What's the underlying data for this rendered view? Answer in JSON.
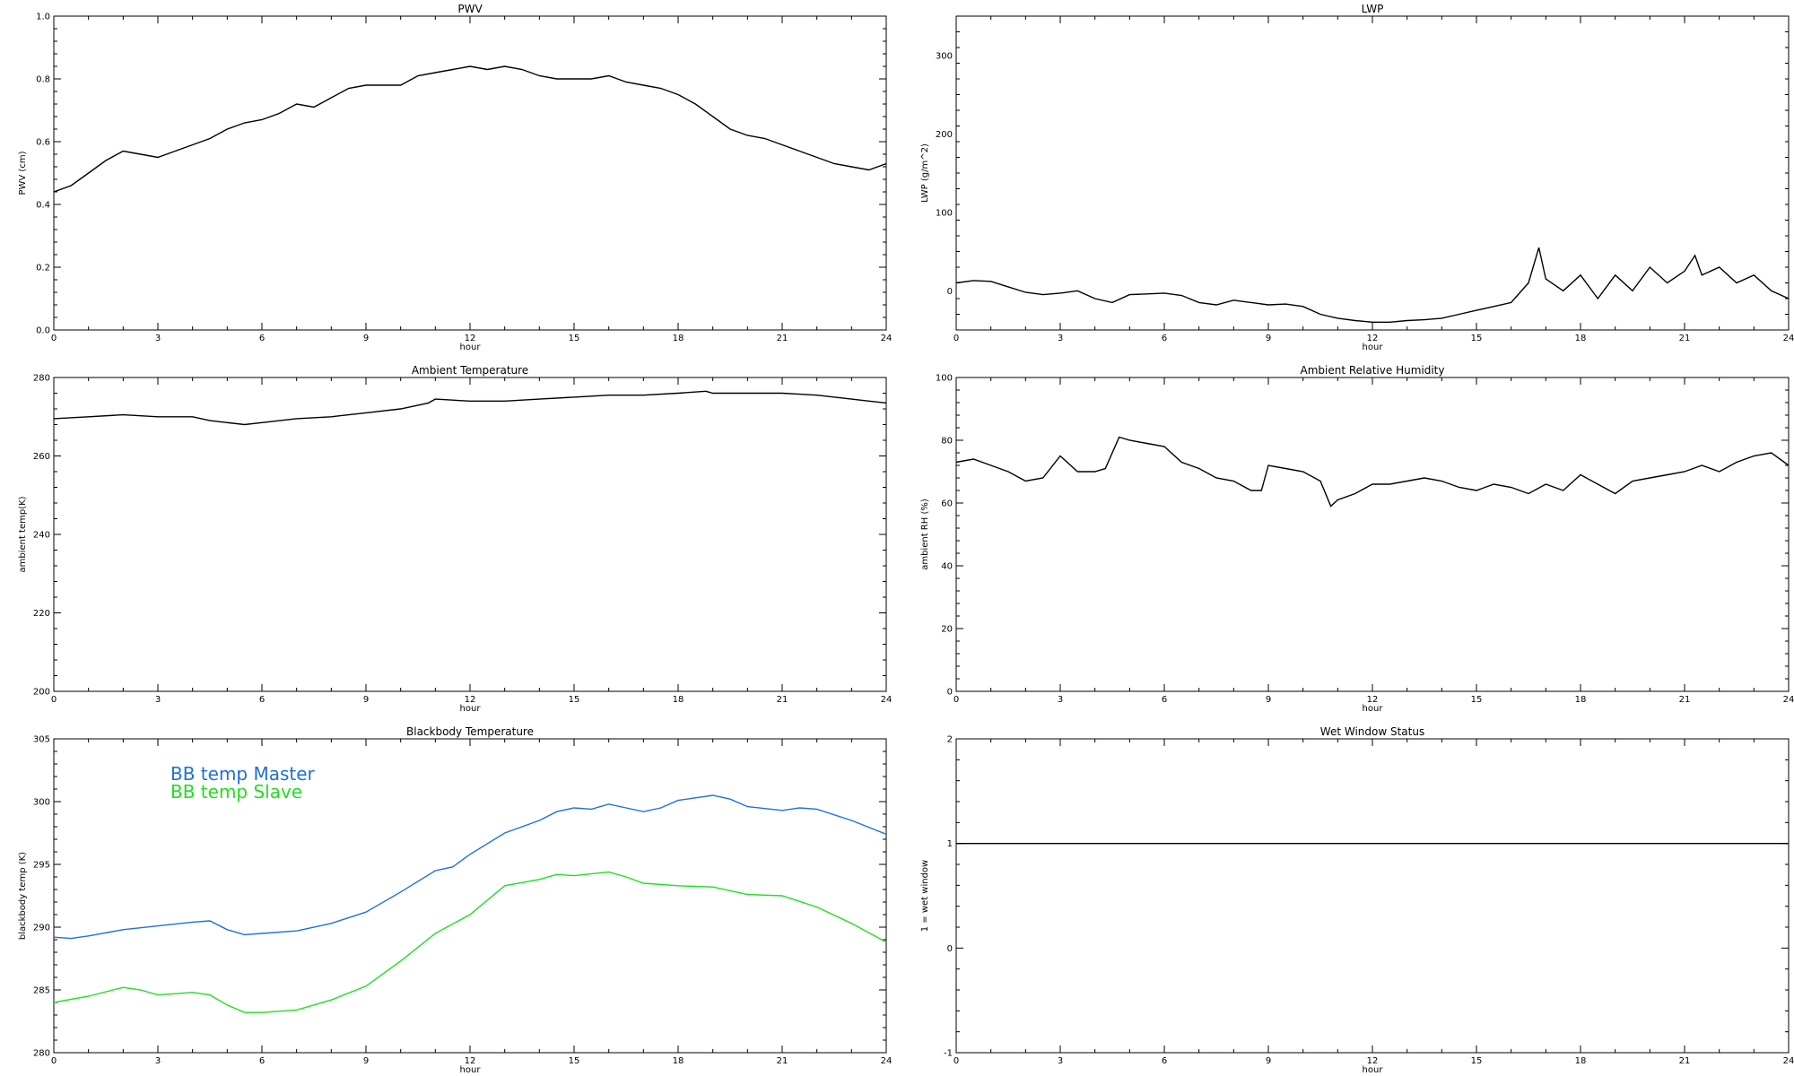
{
  "chart_data": [
    {
      "type": "line",
      "title": "PWV",
      "xlabel": "hour",
      "ylabel": "PWV (cm)",
      "xlim": [
        0,
        24
      ],
      "ylim": [
        0.0,
        1.0
      ],
      "xticks": [
        0,
        3,
        6,
        9,
        12,
        15,
        18,
        21,
        24
      ],
      "yticks": [
        0.0,
        0.2,
        0.4,
        0.6,
        0.8,
        1.0
      ],
      "ytick_labels": [
        "0.0",
        "0.2",
        "0.4",
        "0.6",
        "0.8",
        "1.0"
      ],
      "series": [
        {
          "color": "#000000",
          "x": [
            0,
            0.5,
            1,
            1.5,
            2,
            2.5,
            3,
            3.5,
            4,
            4.5,
            5,
            5.5,
            6,
            6.5,
            7,
            7.5,
            8,
            8.5,
            9,
            9.5,
            10,
            10.5,
            11,
            11.5,
            12,
            12.5,
            13,
            13.5,
            14,
            14.5,
            15,
            15.5,
            16,
            16.5,
            17,
            17.5,
            18,
            18.5,
            19,
            19.5,
            20,
            20.5,
            21,
            21.5,
            22,
            22.5,
            23,
            23.5,
            24
          ],
          "y": [
            0.44,
            0.46,
            0.5,
            0.54,
            0.57,
            0.56,
            0.55,
            0.57,
            0.59,
            0.61,
            0.64,
            0.66,
            0.67,
            0.69,
            0.72,
            0.71,
            0.74,
            0.77,
            0.78,
            0.78,
            0.78,
            0.81,
            0.82,
            0.83,
            0.84,
            0.83,
            0.84,
            0.83,
            0.81,
            0.8,
            0.8,
            0.8,
            0.81,
            0.79,
            0.78,
            0.77,
            0.75,
            0.72,
            0.68,
            0.64,
            0.62,
            0.61,
            0.59,
            0.57,
            0.55,
            0.53,
            0.52,
            0.51,
            0.53
          ]
        }
      ]
    },
    {
      "type": "line",
      "title": "LWP",
      "xlabel": "hour",
      "ylabel": "LWP (g/m^2)",
      "xlim": [
        0,
        24
      ],
      "ylim": [
        -50,
        350
      ],
      "xticks": [
        0,
        3,
        6,
        9,
        12,
        15,
        18,
        21,
        24
      ],
      "yticks": [
        0,
        100,
        200,
        300
      ],
      "ytick_labels": [
        "0",
        "100",
        "200",
        "300"
      ],
      "series": [
        {
          "color": "#000000",
          "x": [
            0,
            0.5,
            1,
            1.5,
            2,
            2.5,
            3,
            3.5,
            4,
            4.5,
            5,
            5.5,
            6,
            6.5,
            7,
            7.5,
            8,
            8.5,
            9,
            9.5,
            10,
            10.5,
            11,
            11.5,
            12,
            12.5,
            13,
            13.5,
            14,
            14.5,
            15,
            15.5,
            16,
            16.5,
            16.8,
            17,
            17.5,
            18,
            18.5,
            19,
            19.5,
            20,
            20.5,
            21,
            21.3,
            21.5,
            22,
            22.5,
            23,
            23.5,
            24
          ],
          "y": [
            10,
            13,
            12,
            5,
            -2,
            -5,
            -3,
            0,
            -10,
            -15,
            -5,
            -4,
            -3,
            -6,
            -15,
            -18,
            -12,
            -15,
            -18,
            -17,
            -20,
            -30,
            -35,
            -38,
            -40,
            -40,
            -38,
            -37,
            -35,
            -30,
            -25,
            -20,
            -15,
            10,
            55,
            15,
            0,
            20,
            -10,
            20,
            0,
            30,
            10,
            25,
            45,
            20,
            30,
            10,
            20,
            0,
            -10
          ]
        }
      ]
    },
    {
      "type": "line",
      "title": "Ambient Temperature",
      "xlabel": "hour",
      "ylabel": "ambient temp(K)",
      "xlim": [
        0,
        24
      ],
      "ylim": [
        200,
        280
      ],
      "xticks": [
        0,
        3,
        6,
        9,
        12,
        15,
        18,
        21,
        24
      ],
      "yticks": [
        200,
        220,
        240,
        260,
        280
      ],
      "ytick_labels": [
        "200",
        "220",
        "240",
        "260",
        "280"
      ],
      "series": [
        {
          "color": "#000000",
          "x": [
            0,
            1,
            2,
            3,
            4,
            4.5,
            5,
            5.5,
            6,
            7,
            8,
            9,
            10,
            10.8,
            11,
            12,
            13,
            14,
            15,
            16,
            17,
            18,
            18.8,
            19,
            20,
            21,
            22,
            23,
            23.5,
            24
          ],
          "y": [
            269.5,
            270,
            270.5,
            270,
            270,
            269,
            268.5,
            268,
            268.5,
            269.5,
            270,
            271,
            272,
            273.5,
            274.5,
            274,
            274,
            274.5,
            275,
            275.5,
            275.5,
            276,
            276.5,
            276,
            276,
            276,
            275.5,
            274.5,
            274,
            273.5
          ]
        }
      ]
    },
    {
      "type": "line",
      "title": "Ambient Relative Humidity",
      "xlabel": "hour",
      "ylabel": "ambient RH (%)",
      "xlim": [
        0,
        24
      ],
      "ylim": [
        0,
        100
      ],
      "xticks": [
        0,
        3,
        6,
        9,
        12,
        15,
        18,
        21,
        24
      ],
      "yticks": [
        0,
        20,
        40,
        60,
        80,
        100
      ],
      "ytick_labels": [
        "0",
        "20",
        "40",
        "60",
        "80",
        "100"
      ],
      "series": [
        {
          "color": "#000000",
          "x": [
            0,
            0.5,
            1,
            1.5,
            2,
            2.5,
            3,
            3.5,
            4,
            4.3,
            4.7,
            5,
            5.5,
            6,
            6.5,
            7,
            7.5,
            8,
            8.5,
            8.8,
            9,
            9.5,
            10,
            10.5,
            10.8,
            11,
            11.5,
            12,
            12.5,
            13,
            13.5,
            14,
            14.5,
            15,
            15.5,
            16,
            16.5,
            17,
            17.5,
            18,
            18.5,
            19,
            19.5,
            20,
            20.5,
            21,
            21.5,
            22,
            22.5,
            23,
            23.5,
            24
          ],
          "y": [
            73,
            74,
            72,
            70,
            67,
            68,
            75,
            70,
            70,
            71,
            81,
            80,
            79,
            78,
            73,
            71,
            68,
            67,
            64,
            64,
            72,
            71,
            70,
            67,
            59,
            61,
            63,
            66,
            66,
            67,
            68,
            67,
            65,
            64,
            66,
            65,
            63,
            66,
            64,
            69,
            66,
            63,
            67,
            68,
            69,
            70,
            72,
            70,
            73,
            75,
            76,
            72
          ]
        }
      ]
    },
    {
      "type": "line",
      "title": "Blackbody Temperature",
      "xlabel": "hour",
      "ylabel": "blackbody temp (K)",
      "xlim": [
        0,
        24
      ],
      "ylim": [
        280,
        305
      ],
      "xticks": [
        0,
        3,
        6,
        9,
        12,
        15,
        18,
        21,
        24
      ],
      "yticks": [
        280,
        285,
        290,
        295,
        300,
        305
      ],
      "ytick_labels": [
        "280",
        "285",
        "290",
        "295",
        "300",
        "305"
      ],
      "legend": [
        {
          "label": "BB temp Master",
          "color": "#1f6fe0"
        },
        {
          "label": "BB temp Slave",
          "color": "#1ee01e"
        }
      ],
      "series": [
        {
          "color": "#1f6fe0",
          "x": [
            0,
            0.5,
            1,
            2,
            3,
            4,
            4.5,
            5,
            5.5,
            6,
            7,
            8,
            9,
            10,
            11,
            11.5,
            12,
            13,
            14,
            14.5,
            15,
            15.5,
            16,
            16.5,
            17,
            17.5,
            18,
            18.5,
            19,
            19.5,
            20,
            21,
            21.5,
            22,
            23,
            24
          ],
          "y": [
            289.2,
            289.1,
            289.3,
            289.8,
            290.1,
            290.4,
            290.5,
            289.8,
            289.4,
            289.5,
            289.7,
            290.3,
            291.2,
            292.8,
            294.5,
            294.8,
            295.8,
            297.5,
            298.5,
            299.2,
            299.5,
            299.4,
            299.8,
            299.5,
            299.2,
            299.5,
            300.1,
            300.3,
            300.5,
            300.2,
            299.6,
            299.3,
            299.5,
            299.4,
            298.5,
            297.4
          ]
        },
        {
          "color": "#1ee01e",
          "x": [
            0,
            1,
            2,
            2.5,
            3,
            4,
            4.5,
            5,
            5.5,
            6,
            7,
            8,
            9,
            10,
            11,
            12,
            13,
            14,
            14.5,
            15,
            16,
            16.5,
            17,
            18,
            19,
            20,
            21,
            22,
            23,
            24
          ],
          "y": [
            284.0,
            284.5,
            285.2,
            285.0,
            284.6,
            284.8,
            284.6,
            283.8,
            283.2,
            283.2,
            283.4,
            284.2,
            285.3,
            287.3,
            289.5,
            291.0,
            293.3,
            293.8,
            294.2,
            294.1,
            294.4,
            294.0,
            293.5,
            293.3,
            293.2,
            292.6,
            292.5,
            291.6,
            290.3,
            288.8
          ]
        }
      ]
    },
    {
      "type": "line",
      "title": "Wet Window Status",
      "xlabel": "hour",
      "ylabel": "1 = wet window",
      "xlim": [
        0,
        24
      ],
      "ylim": [
        -1,
        2
      ],
      "xticks": [
        0,
        3,
        6,
        9,
        12,
        15,
        18,
        21,
        24
      ],
      "yticks": [
        -1,
        0,
        1,
        2
      ],
      "ytick_labels": [
        "-1",
        "0",
        "1",
        "2"
      ],
      "series": [
        {
          "color": "#000000",
          "x": [
            0,
            24
          ],
          "y": [
            1,
            1
          ]
        }
      ]
    }
  ]
}
